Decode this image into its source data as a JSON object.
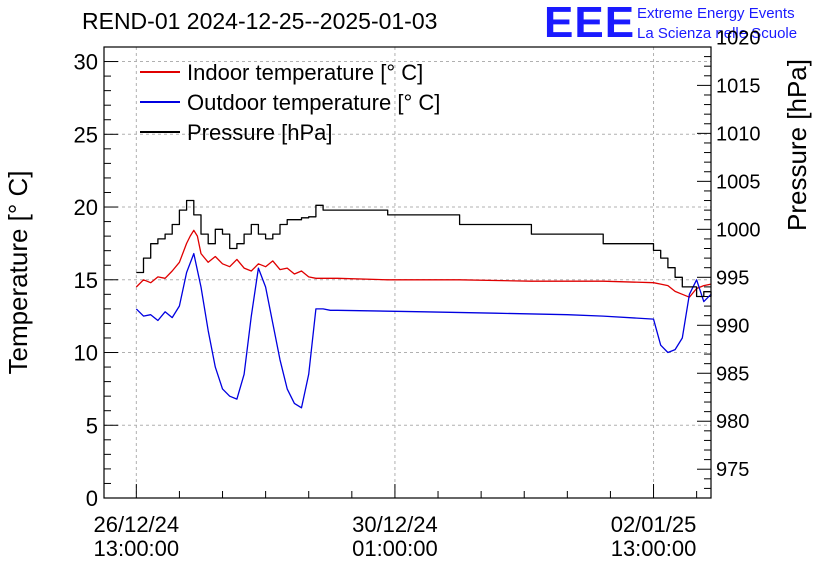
{
  "header": {
    "title": "REND-01 2024-12-25--2025-01-03",
    "logo_text": "EEE",
    "logo_line1": "Extreme Energy Events",
    "logo_line2": "La Scienza nelle Scuole"
  },
  "colors": {
    "indoor": "#e00000",
    "outdoor": "#0000e0",
    "pressure": "#000000",
    "logo": "#1a1aff",
    "grid": "#b0b0b0"
  },
  "chart_data": {
    "type": "line",
    "title": "REND-01 2024-12-25--2025-01-03",
    "x_unit": "hours since 26/12/24 13:00:00",
    "xlim": [
      -4.5,
      80
    ],
    "xticks": [
      {
        "x": 0,
        "line1": "26/12/24",
        "line2": "13:00:00"
      },
      {
        "x": 36,
        "line1": "30/12/24",
        "line2": "01:00:00"
      },
      {
        "x": 72,
        "line1": "02/01/25",
        "line2": "13:00:00"
      }
    ],
    "y_left": {
      "label": "Temperature [° C]",
      "range": [
        0,
        31
      ],
      "ticks": [
        0,
        5,
        10,
        15,
        20,
        25,
        30
      ]
    },
    "y_right": {
      "label": "Pressure [hPa]",
      "range": [
        972,
        1019
      ],
      "ticks": [
        975,
        980,
        985,
        990,
        995,
        1000,
        1005,
        1010,
        1015,
        1020
      ]
    },
    "legend": {
      "position": "top-left",
      "entries": [
        "Indoor temperature [° C]",
        "Outdoor temperature [° C]",
        "Pressure [hPa]"
      ]
    },
    "grid": true,
    "series": [
      {
        "name": "Indoor temperature [° C]",
        "axis": "left",
        "color": "#e00000",
        "x": [
          0,
          1,
          2,
          3,
          4,
          5,
          6,
          7,
          7.5,
          8,
          8.5,
          9,
          9.5,
          10,
          11,
          12,
          13,
          14,
          15,
          16,
          17,
          18,
          19,
          20,
          21,
          22,
          23,
          24,
          25,
          28,
          35,
          45,
          55,
          65,
          72,
          73,
          74,
          75,
          76,
          77,
          78,
          79,
          80
        ],
        "y": [
          14.5,
          15.0,
          14.8,
          15.2,
          15.1,
          15.6,
          16.2,
          17.5,
          18.0,
          18.4,
          18.0,
          16.8,
          16.5,
          16.2,
          16.6,
          16.1,
          15.9,
          16.4,
          15.8,
          15.6,
          16.1,
          15.9,
          16.3,
          15.7,
          15.8,
          15.4,
          15.6,
          15.2,
          15.1,
          15.1,
          15.0,
          15.0,
          14.9,
          14.9,
          14.8,
          14.7,
          14.6,
          14.2,
          14.0,
          13.8,
          14.4,
          14.6,
          14.7
        ]
      },
      {
        "name": "Outdoor temperature [° C]",
        "axis": "left",
        "color": "#0000e0",
        "x": [
          0,
          1,
          2,
          3,
          4,
          5,
          6,
          7,
          8,
          9,
          10,
          11,
          12,
          13,
          14,
          15,
          16,
          17,
          18,
          19,
          20,
          21,
          22,
          23,
          24,
          25,
          26,
          27,
          28,
          40,
          50,
          60,
          65,
          72,
          73,
          74,
          75,
          76,
          77,
          78,
          79,
          80
        ],
        "y": [
          13.0,
          12.5,
          12.6,
          12.2,
          12.8,
          12.4,
          13.2,
          15.5,
          16.8,
          14.5,
          11.5,
          9.0,
          7.5,
          7.0,
          6.8,
          8.5,
          12.5,
          15.8,
          14.5,
          12.0,
          9.5,
          7.5,
          6.5,
          6.2,
          8.5,
          13.0,
          13.0,
          12.9,
          12.9,
          12.8,
          12.7,
          12.6,
          12.5,
          12.3,
          10.5,
          10.0,
          10.2,
          11.0,
          14.0,
          15.0,
          13.5,
          14.0
        ]
      },
      {
        "name": "Pressure [hPa]",
        "axis": "right",
        "color": "#000000",
        "x": [
          0,
          1,
          2,
          3,
          4,
          5,
          6,
          7,
          8,
          9,
          10,
          11,
          12,
          13,
          14,
          15,
          16,
          17,
          18,
          19,
          20,
          21,
          22,
          23,
          24,
          25,
          26,
          28,
          35,
          45,
          55,
          65,
          72,
          73,
          74,
          75,
          76,
          77,
          78,
          79,
          80
        ],
        "y": [
          995.5,
          997.0,
          998.5,
          999.0,
          999.5,
          1000.5,
          1002.0,
          1003.0,
          1001.5,
          999.5,
          998.5,
          1000.0,
          999.5,
          998.0,
          998.5,
          999.5,
          1000.5,
          999.5,
          999.0,
          999.5,
          1000.5,
          1001.0,
          1001.0,
          1001.2,
          1001.3,
          1002.5,
          1002.0,
          1002.0,
          1001.5,
          1000.5,
          999.5,
          998.5,
          997.8,
          997.0,
          996.0,
          995.0,
          994.0,
          994.0,
          993.0,
          993.5,
          993.0
        ]
      }
    ]
  }
}
